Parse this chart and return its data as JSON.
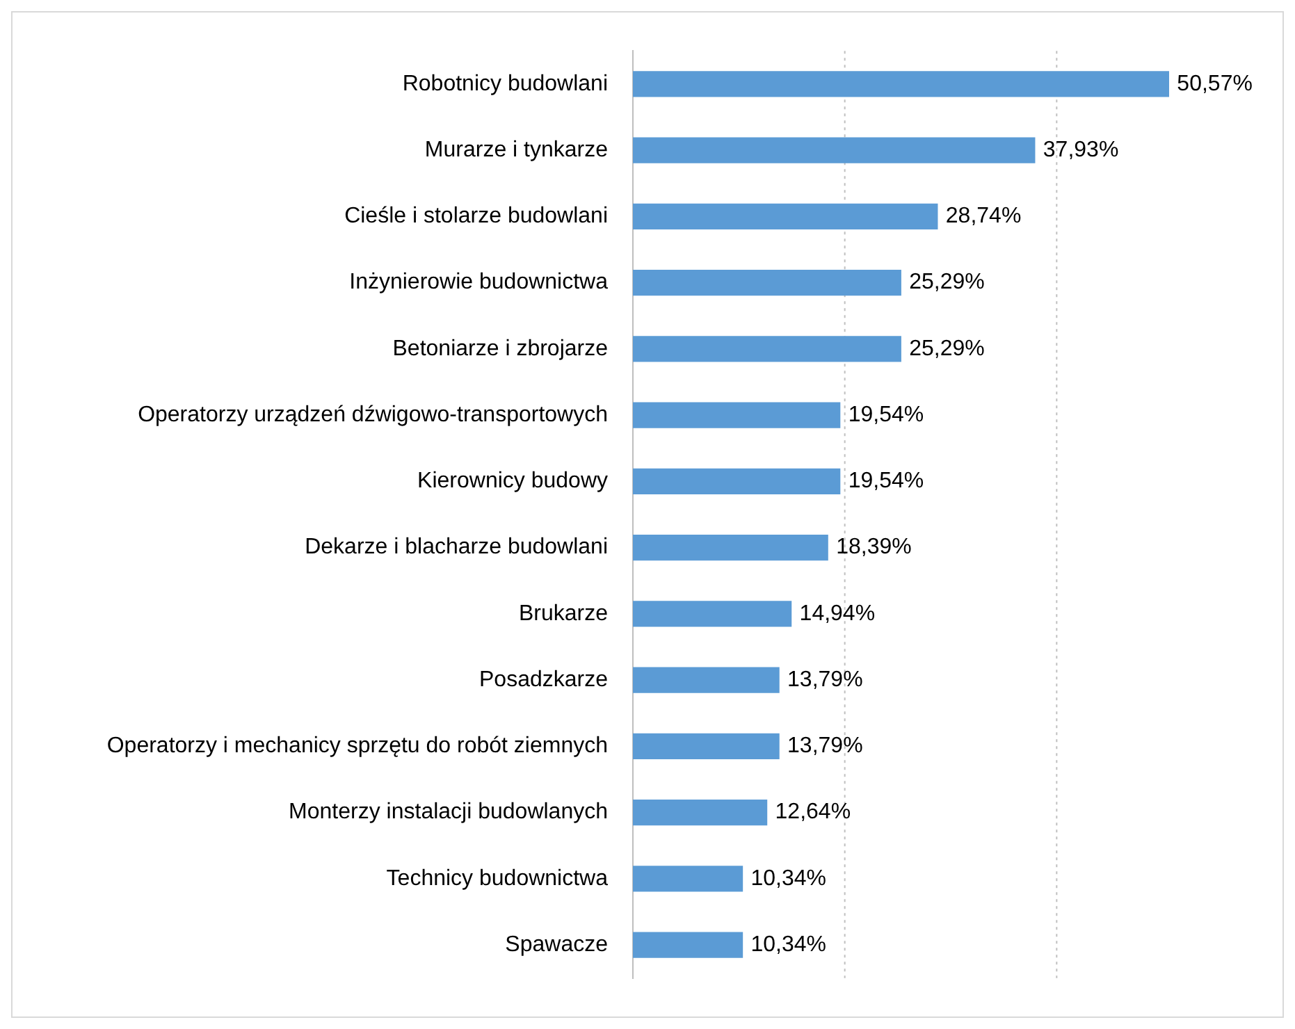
{
  "chart_data": {
    "type": "bar",
    "orientation": "horizontal",
    "categories": [
      "Robotnicy budowlani",
      "Murarze i tynkarze",
      "Cieśle i stolarze budowlani",
      "Inżynierowie budownictwa",
      "Betoniarze i zbrojarze",
      "Operatorzy urządzeń dźwigowo-transportowych",
      "Kierownicy budowy",
      "Dekarze i blacharze budowlani",
      "Brukarze",
      "Posadzkarze",
      "Operatorzy i mechanicy sprzętu do robót ziemnych",
      "Monterzy instalacji budowlanych",
      "Technicy budownictwa",
      "Spawacze"
    ],
    "values": [
      50.57,
      37.93,
      28.74,
      25.29,
      25.29,
      19.54,
      19.54,
      18.39,
      14.94,
      13.79,
      13.79,
      12.64,
      10.34,
      10.34
    ],
    "value_labels": [
      "50,57%",
      "37,93%",
      "28,74%",
      "25,29%",
      "25,29%",
      "19,54%",
      "19,54%",
      "18,39%",
      "14,94%",
      "13,79%",
      "13,79%",
      "12,64%",
      "10,34%",
      "10,34%"
    ],
    "color": "#5b9bd5",
    "ref_lines": [
      {
        "axis": "x",
        "value": 20,
        "color": "#bfbfbf",
        "line_style": "dotted"
      },
      {
        "axis": "x",
        "value": 40,
        "color": "#bfbfbf",
        "line_style": "dotted"
      }
    ],
    "tick_labels": "y",
    "legend": false
  }
}
